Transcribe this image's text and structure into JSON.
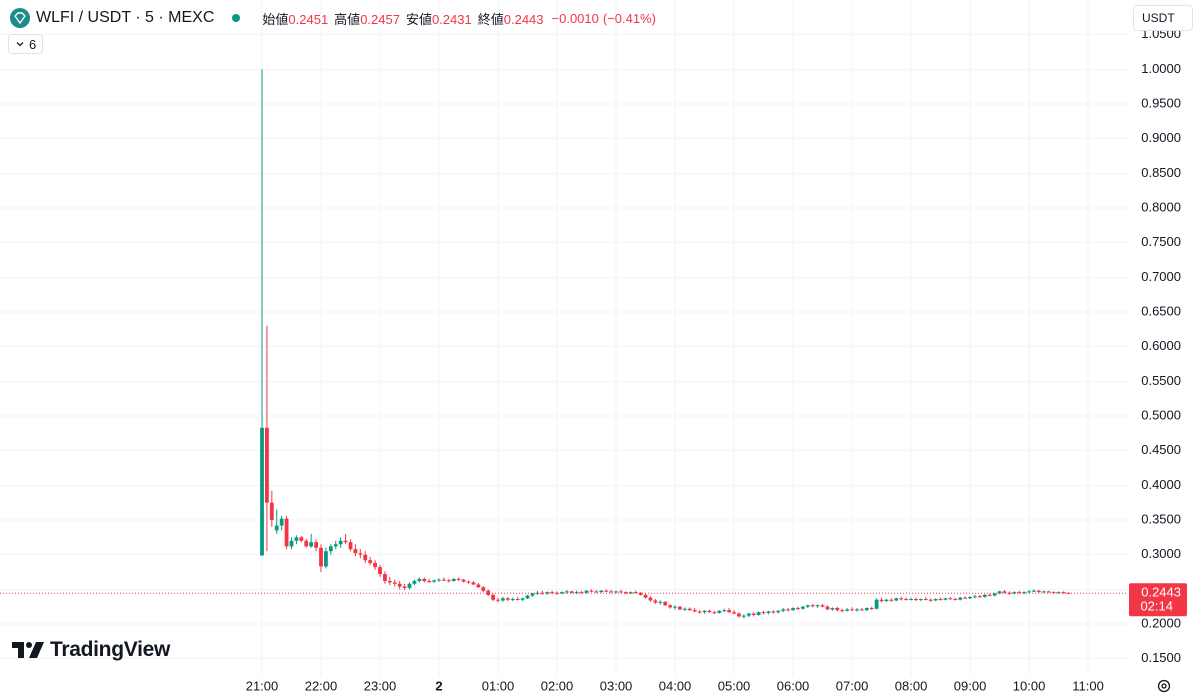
{
  "chart_data": {
    "type": "candlestick",
    "title": "WLFI / USDT · 5 · MEXC",
    "ohlc_header": [
      {
        "label": "始値",
        "value": 0.2451
      },
      {
        "label": "高値",
        "value": 0.2457
      },
      {
        "label": "安値",
        "value": 0.2431
      },
      {
        "label": "終値",
        "value": 0.2443
      }
    ],
    "change": {
      "value": -0.001,
      "label": "−0.0010"
    },
    "change_pct": {
      "value": -0.41,
      "label": "(−0.41%)"
    },
    "indicators_hidden": "6",
    "currency": "USDT",
    "brand": "TradingView",
    "last_price": 0.2443,
    "countdown": "02:14",
    "up_color": "#089981",
    "down_color": "#f23645",
    "grid": true,
    "ylim": [
      0.125,
      1.1
    ],
    "yticks": [
      {
        "value": 0.15,
        "label": "0.1500"
      },
      {
        "value": 0.2,
        "label": "0.2000"
      },
      {
        "value": 0.25,
        "label": "0.2500"
      },
      {
        "value": 0.3,
        "label": "0.3000"
      },
      {
        "value": 0.35,
        "label": "0.3500"
      },
      {
        "value": 0.4,
        "label": "0.4000"
      },
      {
        "value": 0.45,
        "label": "0.4500"
      },
      {
        "value": 0.5,
        "label": "0.5000"
      },
      {
        "value": 0.55,
        "label": "0.5500"
      },
      {
        "value": 0.6,
        "label": "0.6000"
      },
      {
        "value": 0.65,
        "label": "0.6500"
      },
      {
        "value": 0.7,
        "label": "0.7000"
      },
      {
        "value": 0.75,
        "label": "0.7500"
      },
      {
        "value": 0.8,
        "label": "0.8000"
      },
      {
        "value": 0.85,
        "label": "0.8500"
      },
      {
        "value": 0.9,
        "label": "0.9000"
      },
      {
        "value": 0.95,
        "label": "0.9500"
      },
      {
        "value": 1.0,
        "label": "1.0000"
      },
      {
        "value": 1.05,
        "label": "1.0500"
      }
    ],
    "x_labels": [
      "21:00",
      "22:00",
      "23:00",
      "2",
      "01:00",
      "02:00",
      "03:00",
      "04:00",
      "05:00",
      "06:00",
      "07:00",
      "08:00",
      "09:00",
      "10:00",
      "11:00"
    ],
    "ohlc": [
      [
        0.299,
        1.0,
        0.298,
        0.483
      ],
      [
        0.483,
        0.63,
        0.305,
        0.375
      ],
      [
        0.375,
        0.392,
        0.34,
        0.35
      ],
      [
        0.335,
        0.365,
        0.33,
        0.342
      ],
      [
        0.342,
        0.356,
        0.335,
        0.352
      ],
      [
        0.352,
        0.356,
        0.308,
        0.312
      ],
      [
        0.312,
        0.325,
        0.308,
        0.32
      ],
      [
        0.32,
        0.328,
        0.315,
        0.325
      ],
      [
        0.325,
        0.327,
        0.318,
        0.32
      ],
      [
        0.32,
        0.323,
        0.31,
        0.312
      ],
      [
        0.312,
        0.33,
        0.31,
        0.318
      ],
      [
        0.318,
        0.322,
        0.305,
        0.31
      ],
      [
        0.31,
        0.315,
        0.275,
        0.283
      ],
      [
        0.283,
        0.31,
        0.28,
        0.305
      ],
      [
        0.305,
        0.315,
        0.3,
        0.312
      ],
      [
        0.312,
        0.32,
        0.308,
        0.315
      ],
      [
        0.315,
        0.325,
        0.31,
        0.32
      ],
      [
        0.32,
        0.33,
        0.315,
        0.318
      ],
      [
        0.318,
        0.322,
        0.305,
        0.308
      ],
      [
        0.308,
        0.315,
        0.298,
        0.302
      ],
      [
        0.302,
        0.308,
        0.295,
        0.3
      ],
      [
        0.3,
        0.305,
        0.288,
        0.292
      ],
      [
        0.292,
        0.297,
        0.285,
        0.288
      ],
      [
        0.288,
        0.292,
        0.278,
        0.282
      ],
      [
        0.282,
        0.285,
        0.268,
        0.272
      ],
      [
        0.272,
        0.276,
        0.258,
        0.262
      ],
      [
        0.262,
        0.268,
        0.256,
        0.26
      ],
      [
        0.26,
        0.264,
        0.254,
        0.258
      ],
      [
        0.258,
        0.262,
        0.25,
        0.254
      ],
      [
        0.254,
        0.258,
        0.249,
        0.252
      ],
      [
        0.252,
        0.26,
        0.25,
        0.258
      ],
      [
        0.258,
        0.264,
        0.256,
        0.262
      ],
      [
        0.262,
        0.267,
        0.26,
        0.265
      ],
      [
        0.265,
        0.267,
        0.26,
        0.262
      ],
      [
        0.262,
        0.265,
        0.259,
        0.261
      ],
      [
        0.261,
        0.264,
        0.259,
        0.263
      ],
      [
        0.263,
        0.266,
        0.261,
        0.264
      ],
      [
        0.264,
        0.267,
        0.262,
        0.263
      ],
      [
        0.263,
        0.265,
        0.26,
        0.262
      ],
      [
        0.262,
        0.266,
        0.261,
        0.265
      ],
      [
        0.265,
        0.267,
        0.262,
        0.264
      ],
      [
        0.264,
        0.265,
        0.26,
        0.261
      ],
      [
        0.261,
        0.263,
        0.258,
        0.26
      ],
      [
        0.26,
        0.262,
        0.256,
        0.257
      ],
      [
        0.257,
        0.259,
        0.252,
        0.253
      ],
      [
        0.253,
        0.255,
        0.246,
        0.248
      ],
      [
        0.248,
        0.25,
        0.24,
        0.242
      ],
      [
        0.242,
        0.244,
        0.233,
        0.235
      ],
      [
        0.235,
        0.238,
        0.231,
        0.234
      ],
      [
        0.234,
        0.239,
        0.232,
        0.237
      ],
      [
        0.237,
        0.239,
        0.233,
        0.235
      ],
      [
        0.235,
        0.238,
        0.233,
        0.236
      ],
      [
        0.236,
        0.239,
        0.234,
        0.235
      ],
      [
        0.235,
        0.238,
        0.233,
        0.237
      ],
      [
        0.237,
        0.242,
        0.236,
        0.241
      ],
      [
        0.241,
        0.245,
        0.239,
        0.244
      ],
      [
        0.244,
        0.248,
        0.242,
        0.245
      ],
      [
        0.245,
        0.248,
        0.242,
        0.244
      ],
      [
        0.244,
        0.247,
        0.242,
        0.246
      ],
      [
        0.246,
        0.248,
        0.243,
        0.245
      ],
      [
        0.245,
        0.247,
        0.242,
        0.244
      ],
      [
        0.244,
        0.247,
        0.243,
        0.246
      ],
      [
        0.246,
        0.249,
        0.244,
        0.247
      ],
      [
        0.247,
        0.248,
        0.244,
        0.245
      ],
      [
        0.245,
        0.248,
        0.243,
        0.246
      ],
      [
        0.246,
        0.248,
        0.244,
        0.245
      ],
      [
        0.245,
        0.249,
        0.244,
        0.248
      ],
      [
        0.248,
        0.25,
        0.246,
        0.247
      ],
      [
        0.247,
        0.249,
        0.245,
        0.246
      ],
      [
        0.246,
        0.249,
        0.245,
        0.248
      ],
      [
        0.248,
        0.25,
        0.246,
        0.247
      ],
      [
        0.247,
        0.249,
        0.245,
        0.246
      ],
      [
        0.246,
        0.248,
        0.244,
        0.247
      ],
      [
        0.247,
        0.249,
        0.245,
        0.246
      ],
      [
        0.246,
        0.247,
        0.243,
        0.244
      ],
      [
        0.244,
        0.247,
        0.243,
        0.246
      ],
      [
        0.246,
        0.248,
        0.244,
        0.245
      ],
      [
        0.245,
        0.246,
        0.241,
        0.242
      ],
      [
        0.242,
        0.244,
        0.237,
        0.238
      ],
      [
        0.238,
        0.24,
        0.232,
        0.234
      ],
      [
        0.234,
        0.236,
        0.229,
        0.231
      ],
      [
        0.231,
        0.234,
        0.228,
        0.232
      ],
      [
        0.232,
        0.233,
        0.226,
        0.227
      ],
      [
        0.227,
        0.229,
        0.222,
        0.224
      ],
      [
        0.224,
        0.227,
        0.221,
        0.225
      ],
      [
        0.225,
        0.226,
        0.22,
        0.221
      ],
      [
        0.221,
        0.224,
        0.219,
        0.222
      ],
      [
        0.222,
        0.224,
        0.219,
        0.22
      ],
      [
        0.22,
        0.223,
        0.217,
        0.218
      ],
      [
        0.218,
        0.22,
        0.215,
        0.217
      ],
      [
        0.217,
        0.22,
        0.215,
        0.219
      ],
      [
        0.219,
        0.221,
        0.216,
        0.217
      ],
      [
        0.217,
        0.219,
        0.214,
        0.216
      ],
      [
        0.216,
        0.22,
        0.215,
        0.219
      ],
      [
        0.219,
        0.222,
        0.217,
        0.22
      ],
      [
        0.22,
        0.223,
        0.216,
        0.217
      ],
      [
        0.217,
        0.22,
        0.214,
        0.215
      ],
      [
        0.215,
        0.217,
        0.209,
        0.211
      ],
      [
        0.211,
        0.214,
        0.208,
        0.212
      ],
      [
        0.212,
        0.216,
        0.21,
        0.215
      ],
      [
        0.215,
        0.217,
        0.211,
        0.213
      ],
      [
        0.213,
        0.218,
        0.212,
        0.217
      ],
      [
        0.217,
        0.219,
        0.214,
        0.216
      ],
      [
        0.216,
        0.219,
        0.214,
        0.218
      ],
      [
        0.218,
        0.22,
        0.215,
        0.217
      ],
      [
        0.217,
        0.22,
        0.215,
        0.219
      ],
      [
        0.219,
        0.223,
        0.217,
        0.221
      ],
      [
        0.221,
        0.223,
        0.218,
        0.22
      ],
      [
        0.22,
        0.224,
        0.219,
        0.223
      ],
      [
        0.223,
        0.225,
        0.22,
        0.222
      ],
      [
        0.222,
        0.226,
        0.221,
        0.225
      ],
      [
        0.225,
        0.228,
        0.223,
        0.227
      ],
      [
        0.227,
        0.229,
        0.224,
        0.226
      ],
      [
        0.226,
        0.228,
        0.223,
        0.227
      ],
      [
        0.227,
        0.229,
        0.224,
        0.225
      ],
      [
        0.225,
        0.227,
        0.22,
        0.221
      ],
      [
        0.221,
        0.224,
        0.219,
        0.223
      ],
      [
        0.223,
        0.225,
        0.218,
        0.22
      ],
      [
        0.22,
        0.222,
        0.217,
        0.219
      ],
      [
        0.219,
        0.223,
        0.218,
        0.221
      ],
      [
        0.221,
        0.224,
        0.219,
        0.22
      ],
      [
        0.22,
        0.223,
        0.218,
        0.221
      ],
      [
        0.221,
        0.223,
        0.219,
        0.22
      ],
      [
        0.22,
        0.224,
        0.219,
        0.223
      ],
      [
        0.223,
        0.225,
        0.22,
        0.222
      ],
      [
        0.222,
        0.237,
        0.221,
        0.235
      ],
      [
        0.235,
        0.238,
        0.231,
        0.233
      ],
      [
        0.233,
        0.236,
        0.232,
        0.235
      ],
      [
        0.235,
        0.237,
        0.232,
        0.234
      ],
      [
        0.234,
        0.238,
        0.233,
        0.237
      ],
      [
        0.237,
        0.239,
        0.234,
        0.236
      ],
      [
        0.236,
        0.238,
        0.234,
        0.235
      ],
      [
        0.235,
        0.238,
        0.234,
        0.236
      ],
      [
        0.236,
        0.238,
        0.233,
        0.235
      ],
      [
        0.235,
        0.237,
        0.233,
        0.236
      ],
      [
        0.236,
        0.239,
        0.234,
        0.235
      ],
      [
        0.235,
        0.237,
        0.232,
        0.234
      ],
      [
        0.234,
        0.237,
        0.233,
        0.236
      ],
      [
        0.236,
        0.238,
        0.234,
        0.235
      ],
      [
        0.235,
        0.238,
        0.234,
        0.237
      ],
      [
        0.237,
        0.239,
        0.235,
        0.236
      ],
      [
        0.236,
        0.238,
        0.234,
        0.235
      ],
      [
        0.235,
        0.239,
        0.234,
        0.238
      ],
      [
        0.238,
        0.24,
        0.236,
        0.237
      ],
      [
        0.237,
        0.24,
        0.236,
        0.239
      ],
      [
        0.239,
        0.242,
        0.237,
        0.24
      ],
      [
        0.24,
        0.242,
        0.238,
        0.239
      ],
      [
        0.239,
        0.243,
        0.238,
        0.242
      ],
      [
        0.242,
        0.244,
        0.24,
        0.241
      ],
      [
        0.241,
        0.245,
        0.24,
        0.244
      ],
      [
        0.244,
        0.248,
        0.243,
        0.247
      ],
      [
        0.247,
        0.249,
        0.244,
        0.245
      ],
      [
        0.245,
        0.247,
        0.242,
        0.244
      ],
      [
        0.244,
        0.247,
        0.243,
        0.246
      ],
      [
        0.246,
        0.248,
        0.244,
        0.245
      ],
      [
        0.245,
        0.247,
        0.243,
        0.246
      ],
      [
        0.246,
        0.249,
        0.245,
        0.247
      ],
      [
        0.247,
        0.25,
        0.246,
        0.248
      ],
      [
        0.248,
        0.249,
        0.245,
        0.246
      ],
      [
        0.246,
        0.248,
        0.245,
        0.247
      ],
      [
        0.247,
        0.248,
        0.245,
        0.246
      ],
      [
        0.246,
        0.247,
        0.244,
        0.245
      ],
      [
        0.245,
        0.247,
        0.244,
        0.246
      ],
      [
        0.246,
        0.247,
        0.244,
        0.2451
      ],
      [
        0.2451,
        0.2457,
        0.2431,
        0.2443
      ]
    ]
  }
}
